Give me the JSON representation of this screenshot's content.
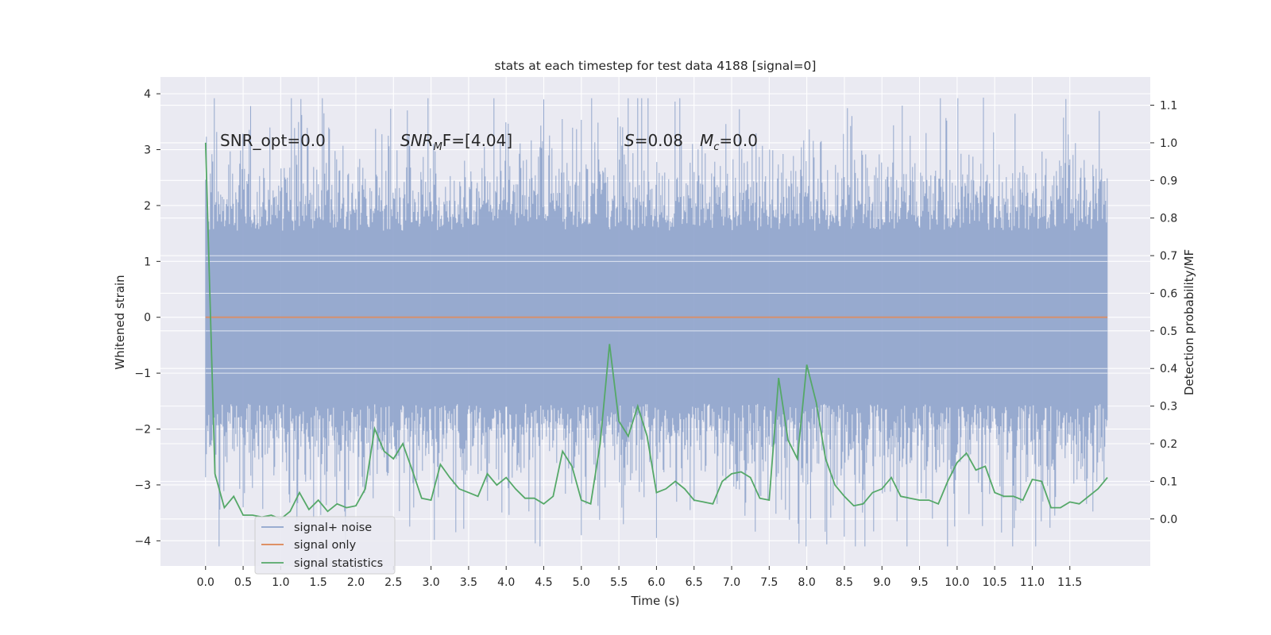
{
  "chart_data": {
    "type": "line",
    "title": "stats at each timestep for test data 4188 [signal=0]",
    "xlabel": "Time (s)",
    "ylabel": "Whitened strain",
    "y2label": "Detection probability/MF",
    "xlim": [
      -0.6,
      12.57
    ],
    "ylim": [
      -4.45,
      4.3
    ],
    "y2lim": [
      -0.125,
      1.175
    ],
    "x_ticks": [
      0.0,
      0.5,
      1.0,
      1.5,
      2.0,
      2.5,
      3.0,
      3.5,
      4.0,
      4.5,
      5.0,
      5.5,
      6.0,
      6.5,
      7.0,
      7.5,
      8.0,
      8.5,
      9.0,
      9.5,
      10.0,
      10.5,
      11.0,
      11.5
    ],
    "x_tick_labels": [
      "0.0",
      "0.5",
      "1.0",
      "1.5",
      "2.0",
      "2.5",
      "3.0",
      "3.5",
      "4.0",
      "4.5",
      "5.0",
      "5.5",
      "6.0",
      "6.5",
      "7.0",
      "7.5",
      "8.0",
      "8.5",
      "9.0",
      "9.5",
      "10.0",
      "10.5",
      "11.0",
      "11.5"
    ],
    "y_ticks": [
      4,
      3,
      2,
      1,
      0,
      -1,
      -2,
      -3,
      -4
    ],
    "y_tick_labels": [
      "4",
      "3",
      "2",
      "1",
      "0",
      "−1",
      "−2",
      "−3",
      "−4"
    ],
    "y2_ticks": [
      1.1,
      1.0,
      0.9,
      0.8,
      0.7,
      0.6,
      0.5,
      0.4,
      0.3,
      0.2,
      0.1,
      0.0
    ],
    "y2_tick_labels": [
      "1.1",
      "1.0",
      "0.9",
      "0.8",
      "0.7",
      "0.6",
      "0.5",
      "0.4",
      "0.3",
      "0.2",
      "0.1",
      "0.0"
    ],
    "grid": true,
    "legend_position": "lower-left",
    "annotations": {
      "snr_opt": "SNR_opt=0.0",
      "snr_mf_prefix": "SNR",
      "snr_mf_sub": "M",
      "snr_mf_suffix": "F=[4.04]",
      "s_prefix": "S",
      "s_value": "=0.08",
      "mc_prefix": "M",
      "mc_sub": "c",
      "mc_value": "=0.0"
    },
    "series": [
      {
        "name": "signal+ noise",
        "color": "#8fa4cc",
        "kind": "noise",
        "x_range": [
          0.0,
          12.0
        ],
        "sample_rate_hz": 2048,
        "typical_peak_abs": [
          2.0,
          3.9
        ],
        "min": -4.1,
        "max": 3.92
      },
      {
        "name": "signal only",
        "color": "#dd8452",
        "x": [
          0.0,
          12.0
        ],
        "y": [
          0.0,
          0.0
        ]
      },
      {
        "name": "signal statistics",
        "color": "#55a868",
        "axis": "right",
        "x": [
          0.0,
          0.125,
          0.25,
          0.375,
          0.5,
          0.625,
          0.75,
          0.875,
          1.0,
          1.125,
          1.25,
          1.375,
          1.5,
          1.625,
          1.75,
          1.875,
          2.0,
          2.125,
          2.25,
          2.375,
          2.5,
          2.625,
          2.75,
          2.875,
          3.0,
          3.125,
          3.25,
          3.375,
          3.5,
          3.625,
          3.75,
          3.875,
          4.0,
          4.125,
          4.25,
          4.375,
          4.5,
          4.625,
          4.75,
          4.875,
          5.0,
          5.125,
          5.25,
          5.375,
          5.5,
          5.625,
          5.75,
          5.875,
          6.0,
          6.125,
          6.25,
          6.375,
          6.5,
          6.625,
          6.75,
          6.875,
          7.0,
          7.125,
          7.25,
          7.375,
          7.5,
          7.625,
          7.75,
          7.875,
          8.0,
          8.125,
          8.25,
          8.375,
          8.5,
          8.625,
          8.75,
          8.875,
          9.0,
          9.125,
          9.25,
          9.375,
          9.5,
          9.625,
          9.75,
          9.875,
          10.0,
          10.125,
          10.25,
          10.375,
          10.5,
          10.625,
          10.75,
          10.875,
          11.0,
          11.125,
          11.25,
          11.375,
          11.5,
          11.625,
          11.75,
          11.875,
          12.0
        ],
        "y": [
          1.0,
          0.12,
          0.03,
          0.06,
          0.01,
          0.01,
          0.005,
          0.01,
          0.0,
          0.02,
          0.07,
          0.025,
          0.05,
          0.02,
          0.04,
          0.03,
          0.035,
          0.08,
          0.24,
          0.18,
          0.16,
          0.2,
          0.13,
          0.055,
          0.05,
          0.145,
          0.11,
          0.08,
          0.07,
          0.06,
          0.12,
          0.09,
          0.11,
          0.08,
          0.055,
          0.055,
          0.04,
          0.06,
          0.18,
          0.14,
          0.05,
          0.04,
          0.2,
          0.465,
          0.26,
          0.22,
          0.3,
          0.22,
          0.07,
          0.08,
          0.1,
          0.08,
          0.05,
          0.045,
          0.04,
          0.1,
          0.12,
          0.125,
          0.11,
          0.055,
          0.05,
          0.375,
          0.21,
          0.16,
          0.41,
          0.31,
          0.16,
          0.09,
          0.06,
          0.035,
          0.04,
          0.07,
          0.08,
          0.11,
          0.06,
          0.055,
          0.05,
          0.05,
          0.04,
          0.1,
          0.15,
          0.175,
          0.13,
          0.14,
          0.07,
          0.06,
          0.06,
          0.05,
          0.105,
          0.1,
          0.03,
          0.03,
          0.045,
          0.04,
          0.06,
          0.08,
          0.11
        ]
      }
    ]
  }
}
